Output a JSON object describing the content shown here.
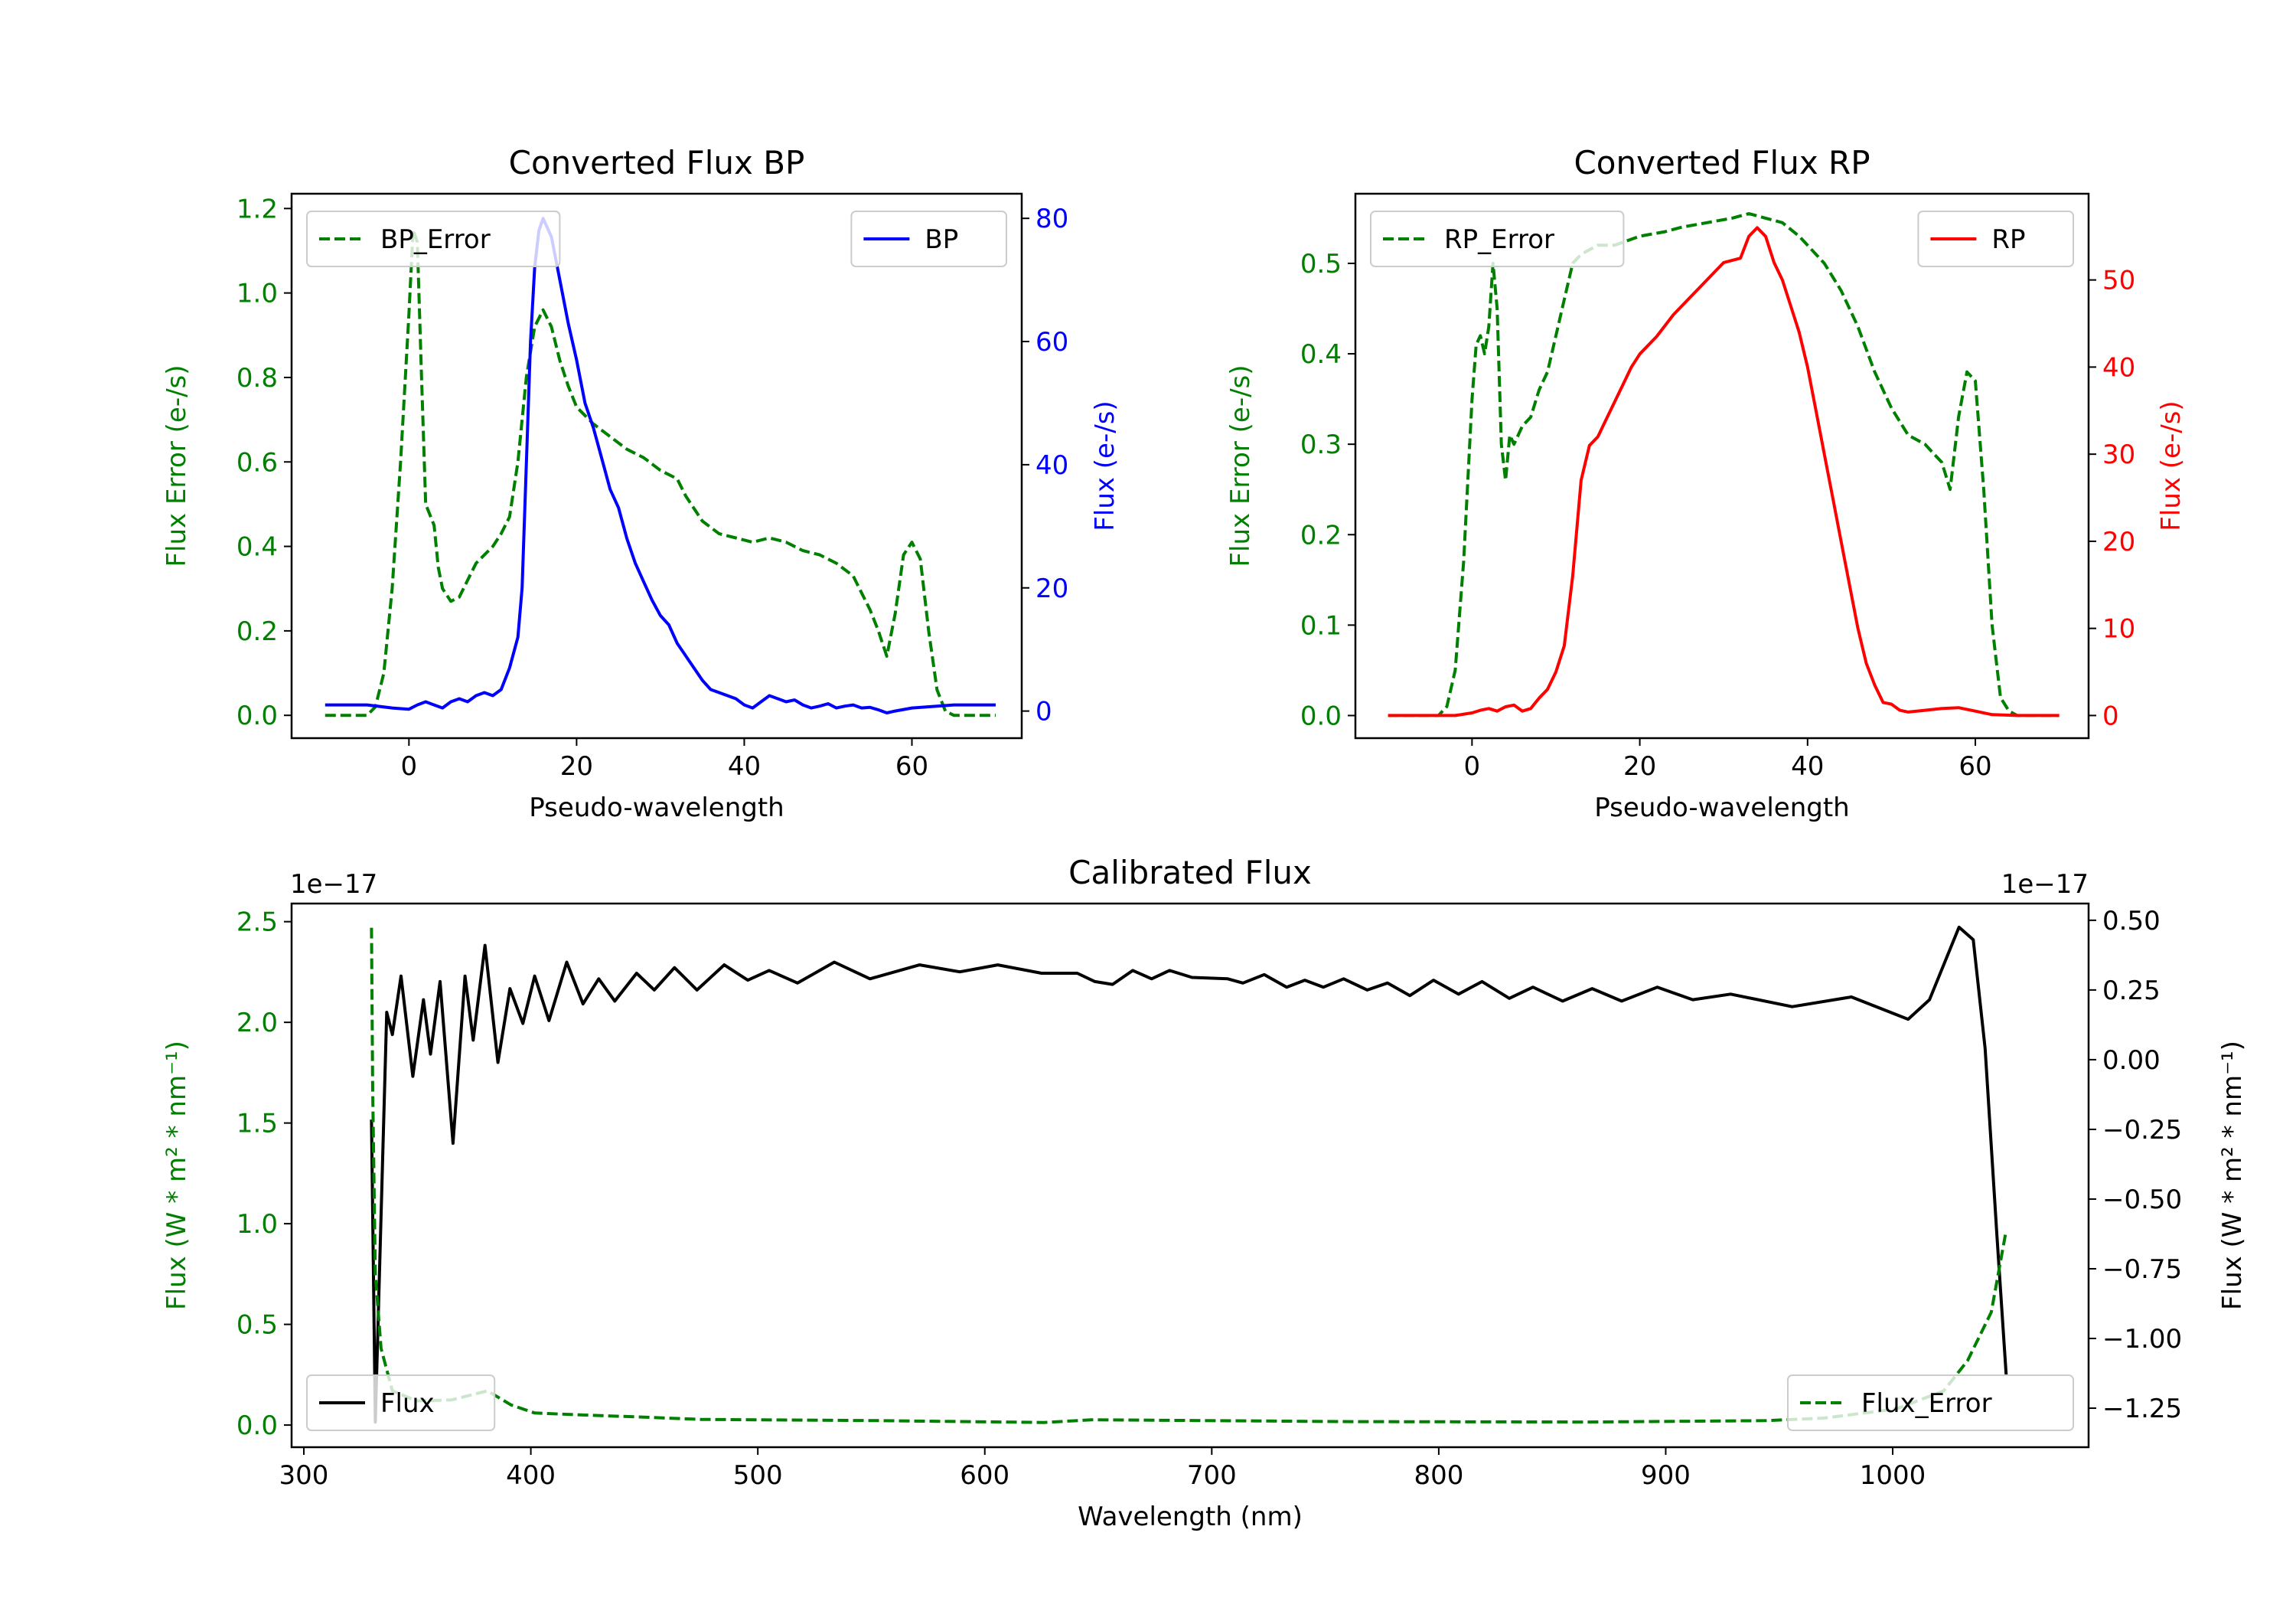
{
  "chart_data": [
    {
      "type": "line",
      "title": "Converted Flux BP",
      "xlabel": "Pseudo-wavelength",
      "ylabel_left": "Flux Error (e-/s)",
      "ylabel_right": "Flux (e-/s)",
      "left_color": "#008000",
      "right_color": "#0000ff",
      "xlim": [
        -14,
        73.1
      ],
      "ylim_left": [
        -0.054,
        1.235
      ],
      "ylim_right": [
        -4.4,
        84
      ],
      "xticks": {
        "values": [
          0,
          20,
          40,
          60
        ],
        "labels": [
          "0",
          "20",
          "40",
          "60"
        ]
      },
      "yticks_left": {
        "values": [
          0,
          0.2,
          0.4,
          0.6,
          0.8,
          1.0,
          1.2
        ],
        "labels": [
          "0.0",
          "0.2",
          "0.4",
          "0.6",
          "0.8",
          "1.0",
          "1.2"
        ]
      },
      "yticks_right": {
        "values": [
          0,
          20,
          40,
          60,
          80
        ],
        "labels": [
          "0",
          "20",
          "40",
          "60",
          "80"
        ]
      },
      "series": [
        {
          "name": "BP_Error",
          "axis": "left",
          "color": "#008000",
          "style": "dashed",
          "legend": "upper left",
          "x": [
            -10,
            -5,
            -4,
            -3,
            -2,
            -1,
            0,
            0.5,
            1,
            1.5,
            2,
            3,
            3.5,
            4,
            5,
            6,
            7,
            8,
            10,
            11,
            12,
            13,
            14,
            15,
            16,
            17,
            18,
            19,
            20,
            22,
            24,
            26,
            28,
            30,
            32,
            33,
            34,
            35,
            37,
            39,
            41,
            43,
            45,
            47,
            49,
            51,
            53,
            54,
            55,
            56,
            57,
            58,
            59,
            60,
            61,
            62,
            63,
            64,
            65,
            70
          ],
          "y": [
            0,
            0,
            0.02,
            0.1,
            0.3,
            0.6,
            0.95,
            1.15,
            1.12,
            0.8,
            0.5,
            0.45,
            0.35,
            0.3,
            0.27,
            0.28,
            0.32,
            0.36,
            0.4,
            0.43,
            0.47,
            0.6,
            0.8,
            0.92,
            0.96,
            0.92,
            0.84,
            0.78,
            0.73,
            0.69,
            0.66,
            0.63,
            0.61,
            0.58,
            0.56,
            0.52,
            0.49,
            0.46,
            0.43,
            0.42,
            0.41,
            0.42,
            0.41,
            0.39,
            0.38,
            0.36,
            0.33,
            0.29,
            0.25,
            0.2,
            0.14,
            0.24,
            0.38,
            0.41,
            0.37,
            0.2,
            0.06,
            0.01,
            0,
            0
          ]
        },
        {
          "name": "BP",
          "axis": "right",
          "color": "#0000ff",
          "style": "solid",
          "legend": "upper right",
          "x": [
            -10,
            -5,
            -2,
            0,
            1,
            2,
            3,
            4,
            5,
            6,
            7,
            8,
            9,
            10,
            11,
            12,
            13,
            13.5,
            14,
            14.5,
            15,
            15.5,
            16,
            17,
            18,
            19,
            20,
            21,
            22,
            23,
            24,
            25,
            26,
            27,
            28,
            29,
            30,
            31,
            32,
            33,
            34,
            35,
            36,
            37,
            38,
            39,
            40,
            41,
            42,
            43,
            44,
            45,
            46,
            47,
            48,
            49,
            50,
            51,
            52,
            53,
            54,
            55,
            56,
            57,
            58,
            60,
            65,
            70
          ],
          "y": [
            1,
            1,
            0.5,
            0.3,
            1,
            1.5,
            1,
            0.5,
            1.5,
            2,
            1.5,
            2.5,
            3,
            2.5,
            3.5,
            7,
            12,
            20,
            40,
            60,
            72,
            78,
            80,
            77,
            70,
            63,
            57,
            50,
            46,
            41,
            36,
            33,
            28,
            24,
            21,
            18,
            15.5,
            14,
            11,
            9,
            7,
            5,
            3.5,
            3,
            2.5,
            2,
            1,
            0.5,
            1.5,
            2.5,
            2,
            1.5,
            1.8,
            1,
            0.5,
            0.8,
            1.2,
            0.5,
            0.8,
            1,
            0.5,
            0.6,
            0.2,
            -0.3,
            0,
            0.5,
            1,
            1
          ]
        }
      ]
    },
    {
      "type": "line",
      "title": "Converted Flux RP",
      "xlabel": "Pseudo-wavelength",
      "ylabel_left": "Flux Error (e-/s)",
      "ylabel_right": "Flux (e-/s)",
      "left_color": "#008000",
      "right_color": "#ff0000",
      "xlim": [
        -13.9,
        73.5
      ],
      "ylim_left": [
        -0.025,
        0.577
      ],
      "ylim_right": [
        -2.6,
        59.9
      ],
      "xticks": {
        "values": [
          0,
          20,
          40,
          60
        ],
        "labels": [
          "0",
          "20",
          "40",
          "60"
        ]
      },
      "yticks_left": {
        "values": [
          0,
          0.1,
          0.2,
          0.3,
          0.4,
          0.5
        ],
        "labels": [
          "0.0",
          "0.1",
          "0.2",
          "0.3",
          "0.4",
          "0.5"
        ]
      },
      "yticks_right": {
        "values": [
          0,
          10,
          20,
          30,
          40,
          50
        ],
        "labels": [
          "0",
          "10",
          "20",
          "30",
          "40",
          "50"
        ]
      },
      "series": [
        {
          "name": "RP_Error",
          "axis": "left",
          "color": "#008000",
          "style": "dashed",
          "legend": "upper left",
          "x": [
            -10,
            -4,
            -3,
            -2,
            -1,
            0,
            0.5,
            1,
            1.5,
            2,
            2.5,
            3,
            3.5,
            4,
            4.5,
            5,
            6,
            7,
            8,
            9,
            10,
            11,
            12,
            13,
            15,
            17,
            20,
            23,
            25,
            28,
            31,
            33,
            35,
            37,
            39,
            40,
            42,
            44,
            46,
            48,
            50,
            52,
            54,
            55,
            56,
            57,
            58,
            59,
            60,
            61,
            62,
            63,
            64,
            65,
            70
          ],
          "y": [
            0,
            0,
            0.01,
            0.05,
            0.17,
            0.35,
            0.41,
            0.42,
            0.4,
            0.43,
            0.5,
            0.45,
            0.3,
            0.26,
            0.31,
            0.3,
            0.32,
            0.33,
            0.36,
            0.38,
            0.42,
            0.46,
            0.5,
            0.51,
            0.52,
            0.52,
            0.53,
            0.535,
            0.54,
            0.545,
            0.55,
            0.555,
            0.55,
            0.545,
            0.53,
            0.52,
            0.5,
            0.47,
            0.43,
            0.38,
            0.34,
            0.31,
            0.3,
            0.29,
            0.28,
            0.25,
            0.33,
            0.38,
            0.37,
            0.25,
            0.1,
            0.02,
            0.005,
            0,
            0
          ]
        },
        {
          "name": "RP",
          "axis": "right",
          "color": "#ff0000",
          "style": "solid",
          "legend": "upper right",
          "x": [
            -10,
            -2,
            0,
            1,
            2,
            3,
            4,
            5,
            6,
            7,
            8,
            9,
            10,
            11,
            12,
            13,
            14,
            15,
            16,
            17,
            18,
            19,
            20,
            22,
            24,
            26,
            28,
            30,
            32,
            33,
            34,
            35,
            36,
            37,
            38,
            39,
            40,
            41,
            42,
            43,
            44,
            45,
            46,
            47,
            48,
            49,
            50,
            51,
            52,
            54,
            56,
            58,
            60,
            62,
            65,
            70
          ],
          "y": [
            0,
            0,
            0.3,
            0.6,
            0.8,
            0.5,
            1,
            1.2,
            0.5,
            0.8,
            2,
            3,
            5,
            8,
            16,
            27,
            31,
            32,
            34,
            36,
            38,
            40,
            41.5,
            43.5,
            46,
            48,
            50,
            52,
            52.5,
            55,
            56,
            55,
            52,
            50,
            47,
            44,
            40,
            35,
            30,
            25,
            20,
            15,
            10,
            6,
            3.5,
            1.5,
            1.3,
            0.6,
            0.4,
            0.6,
            0.8,
            0.9,
            0.5,
            0.1,
            0,
            0
          ]
        }
      ]
    },
    {
      "type": "line",
      "title": "Calibrated Flux",
      "xlabel": "Wavelength (nm)",
      "ylabel_left": "Flux (W * m² * nm⁻¹)",
      "ylabel_right": "Flux (W * m² * nm⁻¹)",
      "left_color": "#008000",
      "right_color": "#000000",
      "offset_left": "1e−17",
      "offset_right": "1e−17",
      "xlim": [
        294.6,
        1086.3
      ],
      "ylim_left": [
        -0.11,
        2.59
      ],
      "ylim_right": [
        -1.39,
        0.56
      ],
      "xticks": {
        "values": [
          300,
          400,
          500,
          600,
          700,
          800,
          900,
          1000
        ],
        "labels": [
          "300",
          "400",
          "500",
          "600",
          "700",
          "800",
          "900",
          "1000"
        ]
      },
      "yticks_left": {
        "values": [
          0,
          0.5,
          1.0,
          1.5,
          2.0,
          2.5
        ],
        "labels": [
          "0.0",
          "0.5",
          "1.0",
          "1.5",
          "2.0",
          "2.5"
        ]
      },
      "yticks_right": {
        "values": [
          0.5,
          0.25,
          0,
          -0.25,
          -0.5,
          -0.75,
          -1.0,
          -1.25
        ],
        "labels": [
          "0.50",
          "0.25",
          "0.00",
          "−0.25",
          "−0.50",
          "−0.75",
          "−1.00",
          "−1.25"
        ]
      },
      "series": [
        {
          "name": "Flux",
          "axis": "right",
          "color": "#000000",
          "style": "solid",
          "legend": "lower left",
          "x": [
            329.8,
            331.5,
            336.5,
            339,
            342.8,
            348,
            352.7,
            355.8,
            360,
            365.7,
            371,
            374.6,
            379.8,
            385.5,
            390.8,
            396.5,
            401.7,
            408,
            415.8,
            423,
            429.9,
            437,
            446.6,
            454.4,
            463.3,
            473.2,
            485.2,
            495.6,
            505,
            517.5,
            533.7,
            549.4,
            571.3,
            589,
            605.7,
            625,
            640.7,
            648.5,
            656.3,
            665.2,
            673.5,
            681.4,
            691.3,
            707,
            713.7,
            723.1,
            733,
            741,
            749.2,
            758.1,
            768.5,
            777.4,
            787.3,
            797.7,
            808.7,
            819.1,
            831.1,
            841.5,
            854.6,
            867.6,
            880.6,
            896.3,
            911.9,
            928.6,
            955.7,
            981.8,
            1006.8,
            1016.2,
            1029.2,
            1035.5,
            1040.7,
            1045.9,
            1050
          ],
          "y": [
            -0.215,
            -1.3,
            0.17,
            0.09,
            0.3,
            -0.06,
            0.215,
            0.02,
            0.28,
            -0.3,
            0.3,
            0.07,
            0.41,
            -0.01,
            0.255,
            0.13,
            0.3,
            0.14,
            0.35,
            0.2,
            0.29,
            0.21,
            0.31,
            0.25,
            0.33,
            0.25,
            0.34,
            0.285,
            0.32,
            0.275,
            0.35,
            0.29,
            0.34,
            0.315,
            0.34,
            0.31,
            0.31,
            0.28,
            0.27,
            0.32,
            0.29,
            0.32,
            0.295,
            0.29,
            0.275,
            0.305,
            0.26,
            0.285,
            0.26,
            0.29,
            0.25,
            0.275,
            0.23,
            0.285,
            0.235,
            0.28,
            0.22,
            0.26,
            0.21,
            0.255,
            0.21,
            0.26,
            0.215,
            0.235,
            0.19,
            0.225,
            0.145,
            0.215,
            0.475,
            0.43,
            0.04,
            -0.63,
            -1.13
          ]
        },
        {
          "name": "Flux_Error",
          "axis": "left",
          "color": "#008000",
          "style": "dashed",
          "legend": "lower right",
          "x": [
            329.8,
            330.3,
            331.5,
            334,
            339,
            349.6,
            365.2,
            380.9,
            391.3,
            401.7,
            422.6,
            448.7,
            474.8,
            553,
            626,
            647,
            761.8,
            866,
            944,
            970,
            1001.6,
            1022.5,
            1033,
            1043.4,
            1049.7
          ],
          "y": [
            2.47,
            1.68,
            0.75,
            0.38,
            0.17,
            0.12,
            0.125,
            0.17,
            0.1,
            0.06,
            0.05,
            0.04,
            0.028,
            0.022,
            0.013,
            0.026,
            0.017,
            0.015,
            0.022,
            0.035,
            0.08,
            0.17,
            0.32,
            0.56,
            0.95
          ]
        }
      ]
    }
  ]
}
